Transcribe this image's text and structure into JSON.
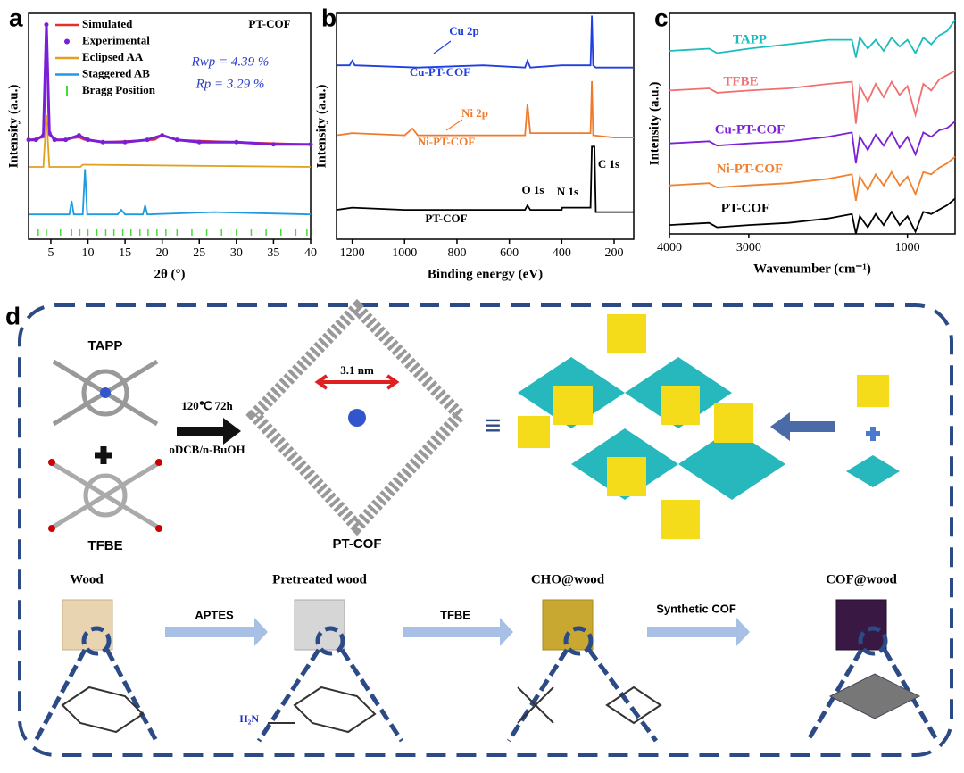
{
  "chart_data": [
    {
      "type": "line",
      "label": "a",
      "xlabel": "2θ (°)",
      "ylabel": "Intensity (a.u.)",
      "xlim": [
        2,
        40
      ],
      "xticks": [
        5,
        10,
        15,
        20,
        25,
        30,
        35,
        40
      ],
      "ylim": [
        0,
        100
      ],
      "annotations": [
        "PT-COF",
        "Rwp = 4.39 %",
        "Rp = 3.29 %"
      ],
      "series": [
        {
          "name": "Simulated",
          "color": "#e8302a",
          "x": [
            2,
            4,
            4.4,
            4.8,
            6,
            8.8,
            9.5,
            12,
            19,
            20,
            22,
            30,
            40
          ],
          "values": [
            44,
            45,
            96,
            46,
            44,
            45,
            44,
            43,
            44,
            46,
            44,
            43,
            42
          ]
        },
        {
          "name": "Experimental",
          "color": "#7a1fd6",
          "x": [
            2,
            3,
            4,
            4.4,
            4.8,
            5.5,
            7,
            8.8,
            10,
            12,
            15,
            18,
            20,
            22,
            25,
            30,
            35,
            40
          ],
          "values": [
            44,
            44,
            46,
            95,
            47,
            44,
            44,
            46,
            44,
            43,
            43,
            44,
            46,
            44,
            43,
            43,
            42,
            42
          ]
        },
        {
          "name": "Eclipsed AA",
          "color": "#e0a020",
          "x": [
            2,
            4,
            4.4,
            4.8,
            9,
            9.3,
            40
          ],
          "values": [
            32,
            32,
            55,
            32,
            32,
            33,
            32
          ]
        },
        {
          "name": "Staggered AB",
          "color": "#1e9be0",
          "x": [
            2,
            7.5,
            7.8,
            8.1,
            9.3,
            9.6,
            9.9,
            14,
            14.5,
            15,
            17.4,
            17.7,
            18,
            27,
            40
          ],
          "values": [
            11,
            11,
            17,
            11,
            11,
            31,
            11,
            11,
            13,
            11,
            11,
            15,
            11,
            12,
            11
          ]
        },
        {
          "name": "Bragg Position",
          "color": "#44dd33",
          "x": [
            3.3,
            4.4,
            6.3,
            7.8,
            8.9,
            10,
            11.2,
            12.4,
            13.5,
            14.7,
            15.8,
            17,
            18.1,
            19.3,
            20.5,
            22,
            24,
            26,
            28,
            30,
            32,
            34,
            36,
            38,
            39.5
          ]
        }
      ]
    },
    {
      "type": "line",
      "label": "b",
      "xlabel": "Binding energy (eV)",
      "ylabel": "Intensity (a.u.)",
      "xlim": [
        1260,
        125
      ],
      "xticks": [
        1200,
        1000,
        800,
        600,
        400,
        200
      ],
      "ylim": [
        0,
        100
      ],
      "annotations": [
        "Cu 2p",
        "Ni 2p",
        "O 1s",
        "N 1s",
        "C 1s"
      ],
      "series": [
        {
          "name": "Cu-PT-COF",
          "color": "#1f3fe0",
          "x": [
            1260,
            1210,
            1200,
            1190,
            950,
            700,
            540,
            531,
            520,
            400,
            290,
            285,
            280,
            270,
            125
          ],
          "values": [
            77,
            77,
            79,
            77,
            76,
            77,
            76,
            79,
            76,
            77,
            77,
            99,
            77,
            76,
            76
          ]
        },
        {
          "name": "Ni-PT-COF",
          "color": "#f07a2a",
          "x": [
            1260,
            1200,
            1000,
            970,
            950,
            700,
            540,
            531,
            520,
            400,
            290,
            285,
            280,
            200,
            125
          ],
          "values": [
            46,
            47,
            46,
            49,
            46,
            46,
            46,
            60,
            47,
            47,
            47,
            70,
            46,
            45,
            45
          ]
        },
        {
          "name": "PT-COF",
          "color": "#000000",
          "x": [
            1260,
            1200,
            1000,
            700,
            540,
            531,
            520,
            400,
            398,
            290,
            285,
            275,
            270,
            125
          ],
          "values": [
            13,
            14,
            13,
            13,
            13,
            15,
            13,
            13,
            14,
            14,
            41,
            41,
            12,
            12
          ]
        }
      ]
    },
    {
      "type": "line",
      "label": "c",
      "xlabel": "Wavenumber (cm⁻¹)",
      "ylabel": "Intensity (a.u.)",
      "xlim": [
        4000,
        400
      ],
      "xticks": [
        4000,
        3000,
        1000
      ],
      "ylim": [
        0,
        100
      ],
      "series": [
        {
          "name": "TAPP",
          "color": "#1abcbc",
          "x": [
            4000,
            3500,
            3400,
            3000,
            2500,
            2000,
            1700,
            1650,
            1600,
            1500,
            1400,
            1300,
            1200,
            1100,
            1000,
            900,
            800,
            700,
            600,
            500,
            400
          ],
          "values": [
            83,
            84,
            82,
            84,
            86,
            88,
            88,
            80,
            89,
            84,
            88,
            83,
            89,
            85,
            88,
            82,
            89,
            86,
            90,
            92,
            97
          ]
        },
        {
          "name": "TFBE",
          "color": "#f07070",
          "x": [
            4000,
            3500,
            3400,
            3000,
            2500,
            2000,
            1700,
            1650,
            1600,
            1500,
            1400,
            1300,
            1200,
            1100,
            1000,
            900,
            800,
            700,
            600,
            500,
            400
          ],
          "values": [
            65,
            66,
            64,
            65,
            66,
            68,
            69,
            50,
            67,
            60,
            68,
            62,
            69,
            63,
            67,
            54,
            68,
            65,
            70,
            72,
            74
          ]
        },
        {
          "name": "Cu-PT-COF",
          "color": "#7d1fd6",
          "x": [
            4000,
            3500,
            3400,
            3000,
            2500,
            2000,
            1700,
            1650,
            1600,
            1500,
            1400,
            1300,
            1200,
            1100,
            1000,
            900,
            800,
            700,
            600,
            500,
            400
          ],
          "values": [
            41,
            42,
            40,
            41,
            42,
            44,
            46,
            32,
            44,
            38,
            45,
            40,
            46,
            39,
            44,
            36,
            46,
            44,
            47,
            48,
            51
          ]
        },
        {
          "name": "Ni-PT-COF",
          "color": "#f08030",
          "x": [
            4000,
            3500,
            3400,
            3000,
            2500,
            2000,
            1700,
            1650,
            1600,
            1500,
            1400,
            1300,
            1200,
            1100,
            1000,
            900,
            800,
            700,
            600,
            500,
            400
          ],
          "values": [
            22,
            23,
            21,
            22,
            23,
            25,
            27,
            15,
            26,
            20,
            27,
            22,
            28,
            22,
            26,
            18,
            28,
            27,
            30,
            32,
            35
          ]
        },
        {
          "name": "PT-COF",
          "color": "#000000",
          "x": [
            4000,
            3500,
            3400,
            3000,
            2500,
            2000,
            1700,
            1650,
            1600,
            1500,
            1400,
            1300,
            1200,
            1100,
            1000,
            900,
            800,
            700,
            600,
            500,
            400
          ],
          "values": [
            4,
            5,
            3,
            4,
            5,
            7,
            9,
            0,
            8,
            3,
            9,
            4,
            10,
            4,
            8,
            1,
            10,
            9,
            11,
            13,
            16
          ]
        }
      ]
    }
  ],
  "diagram": {
    "label": "d",
    "reactants": [
      "TAPP",
      "TFBE"
    ],
    "conditions": [
      "120℃ 72h",
      "oDCB/n-BuOH"
    ],
    "pore_size": "3.1 nm",
    "product": "PT-COF",
    "equivalence": "≡",
    "amine": "H₂N",
    "stages": [
      "Wood",
      "Pretreated wood",
      "CHO@wood",
      "COF@wood"
    ],
    "arrows": [
      "APTES",
      "TFBE",
      "Synthetic COF"
    ]
  }
}
